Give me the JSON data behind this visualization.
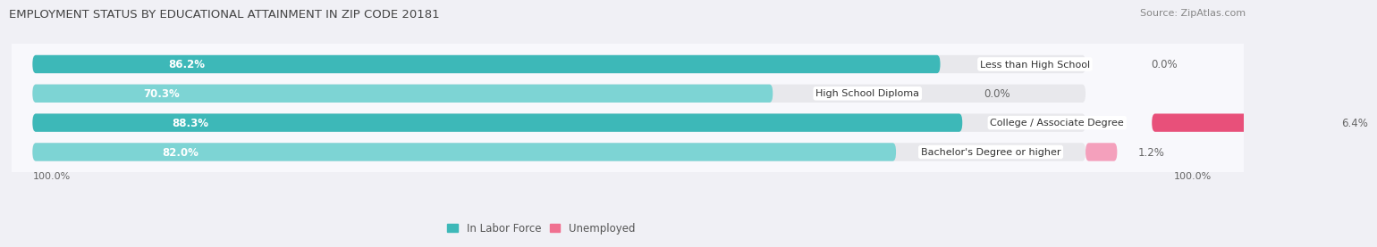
{
  "title": "EMPLOYMENT STATUS BY EDUCATIONAL ATTAINMENT IN ZIP CODE 20181",
  "source": "Source: ZipAtlas.com",
  "categories": [
    "Less than High School",
    "High School Diploma",
    "College / Associate Degree",
    "Bachelor's Degree or higher"
  ],
  "labor_force": [
    86.2,
    70.3,
    88.3,
    82.0
  ],
  "unemployed": [
    0.0,
    0.0,
    6.4,
    1.2
  ],
  "labor_force_color_dark": "#3db8b8",
  "labor_force_color_light": "#7dd4d4",
  "unemployed_color_dark": "#e8507a",
  "unemployed_color_light": "#f4a0bc",
  "bar_bg_color": "#e8e8ec",
  "title_fontsize": 9.5,
  "source_fontsize": 8,
  "label_fontsize": 8.5,
  "value_fontsize": 8.5,
  "bar_height": 0.62,
  "total_width": 100.0,
  "x_axis_left_label": "100.0%",
  "x_axis_right_label": "100.0%",
  "background_color": "#f0f0f5",
  "bar_area_bg": "#f8f8fc",
  "legend_lf_color": "#3db8b8",
  "legend_un_color": "#f07090"
}
